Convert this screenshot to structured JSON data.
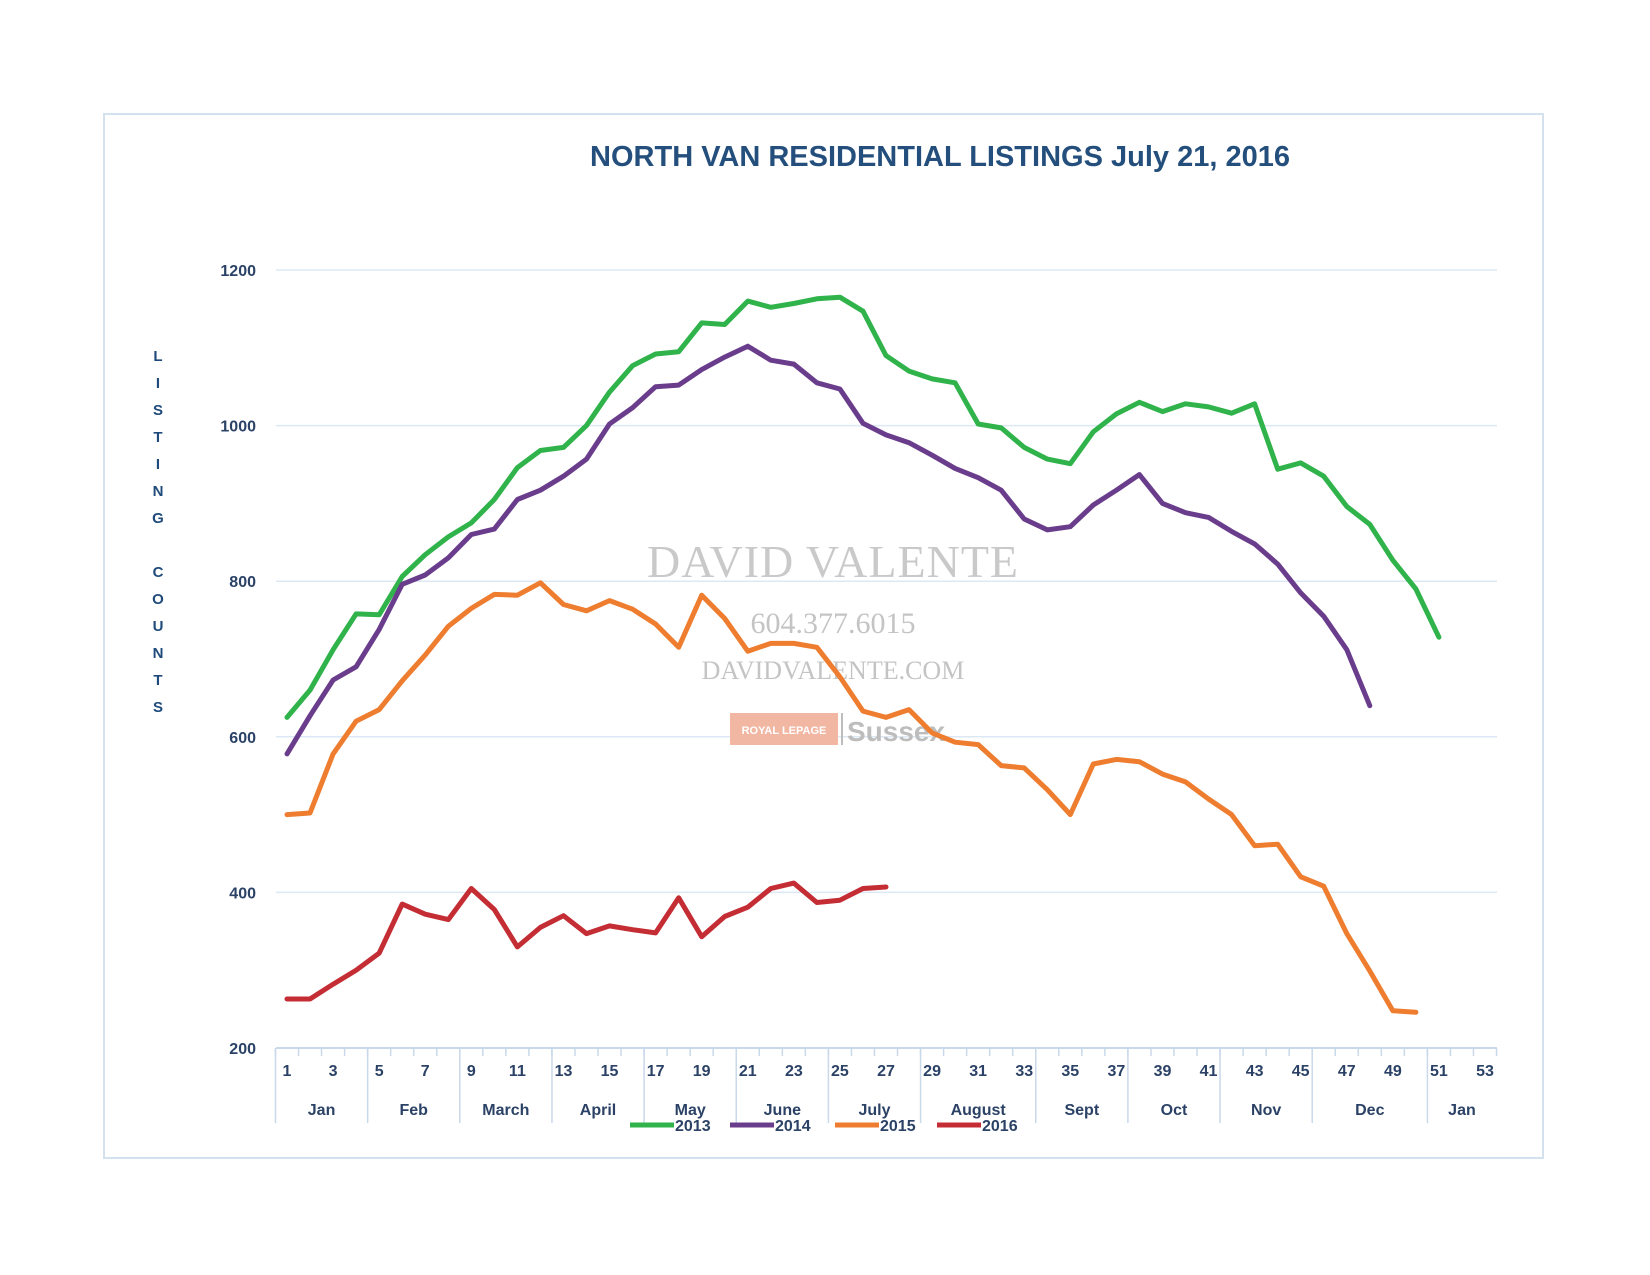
{
  "chart_data": {
    "type": "line",
    "title": "NORTH VAN RESIDENTIAL LISTINGS July 21, 2016",
    "xlabel": "",
    "ylabel": "LISTING COUNTS",
    "ylabel_letters": [
      "L",
      "I",
      "S",
      "T",
      "I",
      "N",
      "G",
      "",
      "C",
      "O",
      "U",
      "N",
      "T",
      "S"
    ],
    "ylim": [
      200,
      1200
    ],
    "yticks": [
      200,
      400,
      600,
      800,
      1000,
      1200
    ],
    "xlim": [
      1,
      53
    ],
    "xticks": [
      1,
      3,
      5,
      7,
      9,
      11,
      13,
      15,
      17,
      19,
      21,
      23,
      25,
      27,
      29,
      31,
      33,
      35,
      37,
      39,
      41,
      43,
      45,
      47,
      49,
      51,
      53
    ],
    "months": [
      {
        "label": "Jan",
        "start": 0.5,
        "end": 4.5
      },
      {
        "label": "Feb",
        "start": 4.5,
        "end": 8.5
      },
      {
        "label": "March",
        "start": 8.5,
        "end": 12.5
      },
      {
        "label": "April",
        "start": 12.5,
        "end": 16.5
      },
      {
        "label": "May",
        "start": 16.5,
        "end": 20.5
      },
      {
        "label": "June",
        "start": 20.5,
        "end": 24.5
      },
      {
        "label": "July",
        "start": 24.5,
        "end": 28.5
      },
      {
        "label": "August",
        "start": 28.5,
        "end": 33.5
      },
      {
        "label": "Sept",
        "start": 33.5,
        "end": 37.5
      },
      {
        "label": "Oct",
        "start": 37.5,
        "end": 41.5
      },
      {
        "label": "Nov",
        "start": 41.5,
        "end": 45.5
      },
      {
        "label": "Dec",
        "start": 45.5,
        "end": 50.5
      },
      {
        "label": "Jan",
        "start": 50.5,
        "end": 53.5
      }
    ],
    "grid": true,
    "legend_position": "bottom",
    "series": [
      {
        "name": "2013",
        "color": "#2fb34a",
        "start_week": 1,
        "values": [
          625,
          660,
          712,
          758,
          757,
          806,
          834,
          857,
          875,
          905,
          946,
          968,
          972,
          1000,
          1043,
          1077,
          1092,
          1095,
          1132,
          1130,
          1160,
          1152,
          1157,
          1163,
          1165,
          1147,
          1090,
          1070,
          1060,
          1055,
          1002,
          997,
          972,
          957,
          951,
          992,
          1015,
          1030,
          1018,
          1028,
          1024,
          1016,
          1028,
          944,
          952,
          935,
          896,
          873,
          827,
          790,
          728
        ]
      },
      {
        "name": "2014",
        "color": "#6a3d8c",
        "start_week": 1,
        "values": [
          578,
          627,
          673,
          690,
          738,
          796,
          808,
          830,
          860,
          867,
          905,
          917,
          935,
          957,
          1002,
          1023,
          1050,
          1052,
          1072,
          1088,
          1102,
          1084,
          1079,
          1055,
          1047,
          1003,
          988,
          978,
          962,
          945,
          933,
          917,
          880,
          866,
          870,
          898,
          917,
          937,
          900,
          888,
          882,
          864,
          848,
          822,
          785,
          755,
          712,
          640
        ]
      },
      {
        "name": "2015",
        "color": "#ee7d2f",
        "start_week": 1,
        "values": [
          500,
          502,
          578,
          620,
          635,
          672,
          705,
          742,
          765,
          783,
          782,
          798,
          770,
          762,
          775,
          764,
          745,
          715,
          782,
          752,
          710,
          720,
          720,
          715,
          677,
          633,
          625,
          635,
          605,
          593,
          590,
          563,
          560,
          532,
          500,
          565,
          571,
          568,
          552,
          542,
          520,
          500,
          460,
          462,
          420,
          408,
          347,
          299,
          248,
          246
        ]
      },
      {
        "name": "2016",
        "color": "#c42d34",
        "start_week": 1,
        "values": [
          263,
          263,
          282,
          300,
          322,
          385,
          372,
          365,
          405,
          378,
          330,
          355,
          370,
          347,
          357,
          352,
          348,
          393,
          343,
          369,
          381,
          405,
          412,
          387,
          390,
          405,
          407
        ]
      }
    ]
  },
  "watermark": {
    "name": "DAVID VALENTE",
    "phone": "604.377.6015",
    "website": "DAVIDVALENTE.COM",
    "brand_badge": "ROYAL LEPAGE",
    "brand_name": "Sussex"
  }
}
